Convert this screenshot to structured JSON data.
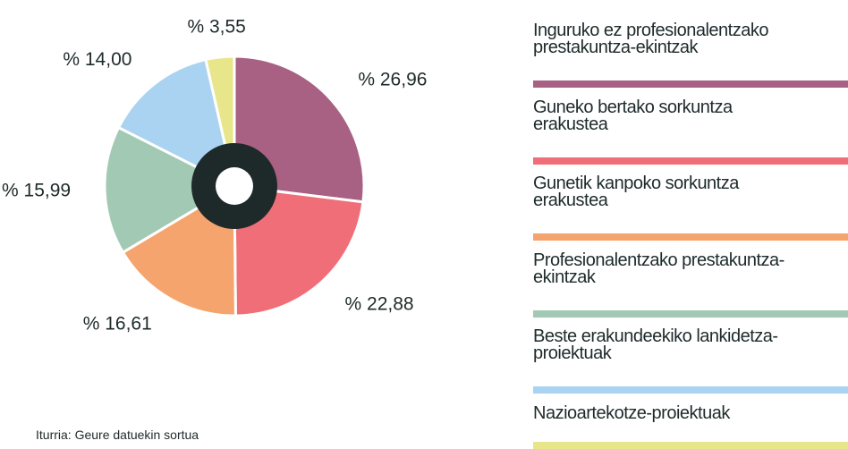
{
  "chart_data": {
    "type": "pie",
    "categories": [
      "Inguruko ez profesionalentzako prestakuntza-ekintzak",
      "Guneko bertako sorkuntza erakustea",
      "Gunetik kanpoko sorkuntza erakustea",
      "Profesionalentzako prestakuntza-ekintzak",
      "Beste erakundeekiko lankidetza-proiektuak",
      "Nazioartekotze-proiektuak"
    ],
    "values": [
      26.96,
      22.88,
      16.61,
      15.99,
      14.0,
      3.55
    ],
    "value_labels": [
      "% 26,96",
      "% 22,88",
      "% 16,61",
      "% 15,99",
      "% 14,00",
      "% 3,55"
    ],
    "colors": [
      "#a86083",
      "#f06e78",
      "#f5a46e",
      "#a2c9b3",
      "#a9d3f0",
      "#e8e68a"
    ],
    "source": "Iturria: Geure datuekin sortua"
  }
}
